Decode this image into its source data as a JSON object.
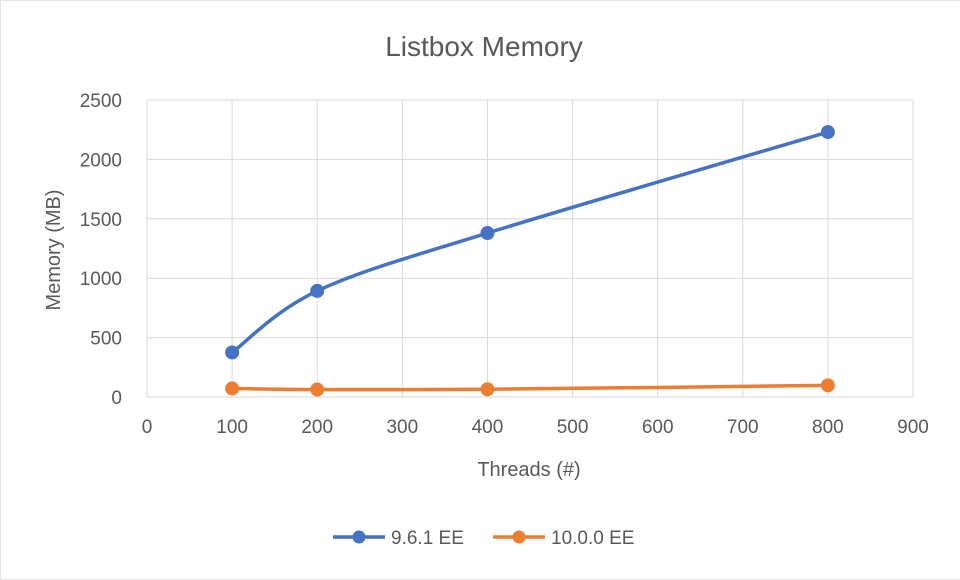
{
  "chart_data": {
    "type": "scatter",
    "title": "Listbox Memory",
    "xlabel": "Threads (#)",
    "ylabel": "Memory (MB)",
    "xlim": [
      0,
      900
    ],
    "ylim": [
      0,
      2500
    ],
    "x_ticks": [
      "0",
      "100",
      "200",
      "300",
      "400",
      "500",
      "600",
      "700",
      "800",
      "900"
    ],
    "y_ticks": [
      "0",
      "500",
      "1000",
      "1500",
      "2000",
      "2500"
    ],
    "grid": true,
    "smooth": true,
    "legend_position": "bottom",
    "series": [
      {
        "name": "9.6.1 EE",
        "color": "#4472C4",
        "x": [
          100,
          200,
          400,
          800
        ],
        "y": [
          375,
          893,
          1380,
          2230
        ]
      },
      {
        "name": "10.0.0 EE",
        "color": "#ED7D31",
        "x": [
          100,
          200,
          400,
          800
        ],
        "y": [
          72,
          63,
          65,
          98
        ]
      }
    ]
  }
}
